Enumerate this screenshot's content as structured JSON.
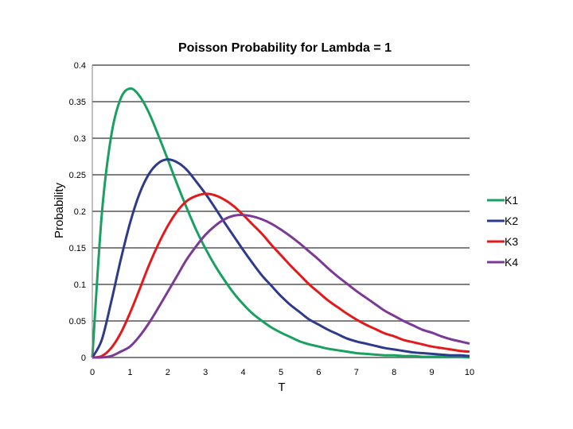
{
  "chart_data": {
    "type": "line",
    "title": "Poisson Probability for Lambda = 1",
    "xlabel": "T",
    "ylabel": "Probability",
    "xlim": [
      0,
      10
    ],
    "ylim": [
      0,
      0.4
    ],
    "x_ticks": [
      "0",
      "1",
      "2",
      "3",
      "4",
      "5",
      "6",
      "7",
      "8",
      "9",
      "10"
    ],
    "y_ticks": [
      "0",
      "0.05",
      "0.1",
      "0.15",
      "0.2",
      "0.25",
      "0.3",
      "0.35",
      "0.4"
    ],
    "grid": "horizontal",
    "legend_position": "right",
    "x": [
      0,
      0.25,
      0.5,
      0.75,
      1,
      1.25,
      1.5,
      1.75,
      2,
      2.25,
      2.5,
      2.75,
      3,
      3.25,
      3.5,
      3.75,
      4,
      4.25,
      4.5,
      4.75,
      5,
      5.25,
      5.5,
      5.75,
      6,
      6.25,
      6.5,
      6.75,
      7,
      7.25,
      7.5,
      7.75,
      8,
      8.25,
      8.5,
      8.75,
      9,
      9.25,
      9.5,
      9.75,
      10
    ],
    "series": [
      {
        "name": "K1",
        "color": "#1aa060",
        "values": [
          0,
          0.195,
          0.303,
          0.354,
          0.368,
          0.358,
          0.335,
          0.304,
          0.271,
          0.237,
          0.205,
          0.175,
          0.149,
          0.126,
          0.106,
          0.088,
          0.073,
          0.06,
          0.05,
          0.041,
          0.034,
          0.028,
          0.022,
          0.018,
          0.015,
          0.012,
          0.01,
          0.008,
          0.006,
          0.005,
          0.004,
          0.003,
          0.003,
          0.002,
          0.002,
          0.001,
          0.001,
          0.001,
          0.001,
          0.001,
          0.0
        ]
      },
      {
        "name": "K2",
        "color": "#2e3b8c",
        "values": [
          0,
          0.024,
          0.076,
          0.133,
          0.184,
          0.224,
          0.251,
          0.266,
          0.271,
          0.267,
          0.257,
          0.241,
          0.224,
          0.205,
          0.185,
          0.166,
          0.147,
          0.129,
          0.112,
          0.098,
          0.084,
          0.072,
          0.062,
          0.052,
          0.045,
          0.038,
          0.032,
          0.026,
          0.022,
          0.019,
          0.016,
          0.013,
          0.011,
          0.009,
          0.007,
          0.006,
          0.005,
          0.004,
          0.003,
          0.003,
          0.002
        ]
      },
      {
        "name": "K3",
        "color": "#e31a1c",
        "values": [
          0,
          0.002,
          0.013,
          0.033,
          0.061,
          0.093,
          0.126,
          0.155,
          0.18,
          0.2,
          0.214,
          0.221,
          0.224,
          0.222,
          0.216,
          0.207,
          0.195,
          0.182,
          0.169,
          0.154,
          0.14,
          0.126,
          0.113,
          0.1,
          0.089,
          0.078,
          0.069,
          0.06,
          0.052,
          0.045,
          0.039,
          0.033,
          0.029,
          0.024,
          0.021,
          0.018,
          0.015,
          0.013,
          0.011,
          0.009,
          0.008
        ]
      },
      {
        "name": "K4",
        "color": "#7b3a96",
        "values": [
          0,
          0.0001,
          0.002,
          0.008,
          0.015,
          0.029,
          0.047,
          0.068,
          0.09,
          0.112,
          0.134,
          0.152,
          0.168,
          0.18,
          0.189,
          0.194,
          0.195,
          0.193,
          0.189,
          0.183,
          0.175,
          0.166,
          0.156,
          0.145,
          0.134,
          0.122,
          0.111,
          0.101,
          0.091,
          0.082,
          0.073,
          0.064,
          0.057,
          0.05,
          0.044,
          0.038,
          0.034,
          0.029,
          0.025,
          0.022,
          0.019
        ]
      }
    ]
  }
}
